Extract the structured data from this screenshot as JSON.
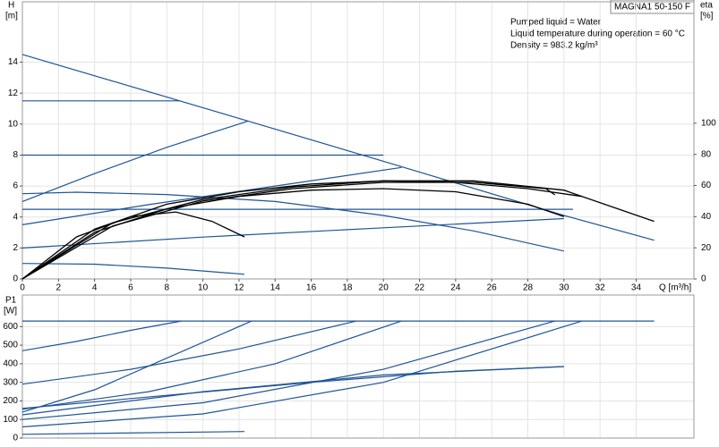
{
  "chart_data": [
    {
      "type": "line",
      "title": "MAGNA1 50-150 F",
      "annotations": [
        "Pumped liquid = Water",
        "Liquid temperature during operation = 60 °C",
        "Density = 983.2 kg/m³"
      ],
      "xlabel": "Q [m³/h]",
      "ylabel": "H",
      "ylabel_unit": "[m]",
      "y2label": "eta",
      "y2label_unit": "[%]",
      "xlim": [
        0,
        37.2
      ],
      "xticks": [
        0,
        2,
        4,
        6,
        8,
        10,
        12,
        14,
        16,
        18,
        20,
        22,
        24,
        26,
        28,
        30,
        32,
        34
      ],
      "ylim": [
        0,
        17.9
      ],
      "yticks": [
        0,
        2,
        4,
        6,
        8,
        10,
        12,
        14
      ],
      "y2lim": [
        0,
        178
      ],
      "y2ticks": [
        0,
        20,
        40,
        60,
        80,
        100
      ],
      "grid": true,
      "series": [
        {
          "color": "#1f5496",
          "x": [
            0,
            12.5,
            21,
            30,
            35
          ],
          "values": [
            14.5,
            10.2,
            7.25,
            4.1,
            2.5
          ]
        },
        {
          "color": "#1f5496",
          "x": [
            0,
            8.7
          ],
          "values": [
            11.5,
            11.5
          ]
        },
        {
          "color": "#1f5496",
          "x": [
            0,
            20
          ],
          "values": [
            8,
            8
          ]
        },
        {
          "color": "#1f5496",
          "x": [
            0,
            30.5
          ],
          "values": [
            4.5,
            4.5
          ]
        },
        {
          "color": "#1f5496",
          "x": [
            0,
            4,
            8,
            12.5
          ],
          "values": [
            5,
            6.8,
            8.5,
            10.2
          ]
        },
        {
          "color": "#1f5496",
          "x": [
            0,
            7,
            14,
            21
          ],
          "values": [
            3.5,
            4.8,
            6,
            7.2
          ]
        },
        {
          "color": "#1f5496",
          "x": [
            0,
            10,
            20,
            30
          ],
          "values": [
            2,
            2.7,
            3.3,
            3.9
          ]
        },
        {
          "color": "#1f5496",
          "x": [
            0,
            3,
            8,
            14,
            20,
            25,
            30
          ],
          "values": [
            5.5,
            5.6,
            5.45,
            5,
            4.1,
            3.1,
            1.8
          ]
        },
        {
          "color": "#1f5496",
          "x": [
            0,
            4,
            8,
            12.3
          ],
          "values": [
            1,
            0.95,
            0.7,
            0.3
          ]
        },
        {
          "color": "#000000",
          "axis": "y2",
          "x": [
            0,
            3,
            6,
            8.5,
            10.5,
            12.3
          ],
          "values": [
            0,
            27,
            40,
            43,
            37,
            27
          ]
        },
        {
          "color": "#000000",
          "axis": "y2",
          "x": [
            0,
            4,
            8,
            12,
            16,
            20,
            24,
            28,
            30
          ],
          "values": [
            0,
            30,
            45,
            53,
            57,
            58,
            56,
            48,
            40
          ]
        },
        {
          "color": "#000000",
          "axis": "y2",
          "x": [
            0,
            4,
            8,
            12,
            16,
            20,
            24,
            28,
            31
          ],
          "values": [
            0,
            32,
            48,
            56,
            61,
            63,
            62,
            58,
            53
          ]
        },
        {
          "color": "#000000",
          "axis": "y2",
          "x": [
            0,
            5,
            10,
            15,
            20,
            25,
            30,
            35
          ],
          "values": [
            0,
            36,
            51,
            59,
            63,
            63,
            57,
            37
          ]
        },
        {
          "color": "#000000",
          "axis": "y2",
          "x": [
            0,
            5,
            10,
            15,
            20,
            25,
            29,
            29.5
          ],
          "values": [
            0,
            34,
            50,
            58,
            62,
            62,
            58,
            54
          ]
        }
      ]
    },
    {
      "type": "line",
      "ylabel": "P1",
      "ylabel_unit": "[W]",
      "ylim": [
        0,
        770
      ],
      "yticks": [
        0,
        100,
        200,
        300,
        400,
        500,
        600
      ],
      "grid": true,
      "series": [
        {
          "color": "#1f5496",
          "x": [
            0,
            35
          ],
          "values": [
            630,
            630
          ]
        },
        {
          "color": "#1f5496",
          "x": [
            0,
            3,
            6,
            8.8
          ],
          "values": [
            470,
            520,
            580,
            630
          ]
        },
        {
          "color": "#1f5496",
          "x": [
            0,
            4,
            8,
            12.7
          ],
          "values": [
            140,
            260,
            430,
            630
          ]
        },
        {
          "color": "#1f5496",
          "x": [
            0,
            6,
            12,
            18.5
          ],
          "values": [
            290,
            370,
            480,
            630
          ]
        },
        {
          "color": "#1f5496",
          "x": [
            0,
            7,
            14,
            21
          ],
          "values": [
            155,
            250,
            400,
            630
          ]
        },
        {
          "color": "#1f5496",
          "x": [
            0,
            10,
            20,
            29.5
          ],
          "values": [
            100,
            190,
            370,
            630
          ]
        },
        {
          "color": "#1f5496",
          "x": [
            0,
            10,
            20,
            31
          ],
          "values": [
            60,
            130,
            300,
            630
          ]
        },
        {
          "color": "#1f5496",
          "x": [
            0,
            10,
            20,
            30
          ],
          "values": [
            125,
            250,
            340,
            385
          ]
        },
        {
          "color": "#1f5496",
          "x": [
            0,
            8,
            16,
            24,
            30
          ],
          "values": [
            160,
            230,
            300,
            360,
            385
          ]
        },
        {
          "color": "#1f5496",
          "x": [
            0,
            12.3
          ],
          "values": [
            20,
            35
          ]
        }
      ]
    }
  ]
}
